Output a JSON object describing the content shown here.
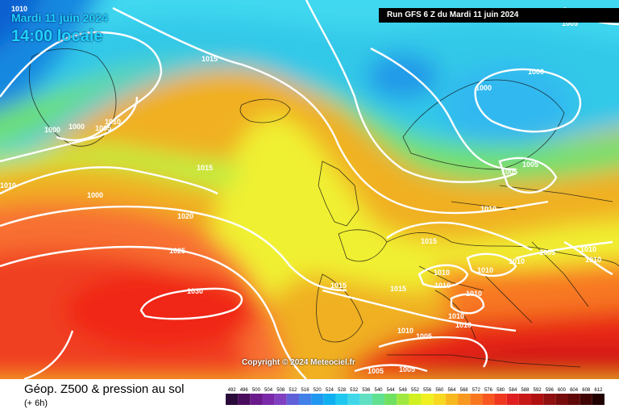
{
  "header": {
    "date_label": "Mardi 11 juin 2024",
    "time_label": "14:00 locale",
    "run_label": "Run GFS 6 Z du Mardi 11 juin 2024"
  },
  "copyright": "Copyright © 2024 Meteociel.fr",
  "legend": {
    "title": "Géop. Z500 & pression au sol",
    "subtitle": "(+ 6h)",
    "scale": [
      "492",
      "496",
      "500",
      "504",
      "508",
      "512",
      "516",
      "520",
      "524",
      "528",
      "532",
      "536",
      "540",
      "544",
      "548",
      "552",
      "556",
      "560",
      "564",
      "568",
      "572",
      "576",
      "580",
      "584",
      "588",
      "592",
      "596",
      "600",
      "604",
      "608",
      "612"
    ],
    "scale_colors": [
      "#2a0a3a",
      "#4a0c5c",
      "#6a1a8a",
      "#7a2aa8",
      "#8040c0",
      "#6060d8",
      "#4080e8",
      "#2098f0",
      "#10b0f0",
      "#20c8f0",
      "#40d8e8",
      "#60e0c0",
      "#60e090",
      "#70e060",
      "#a0e840",
      "#d0f020",
      "#f0f020",
      "#f8d820",
      "#f8b820",
      "#f89820",
      "#f87820",
      "#f85820",
      "#f03820",
      "#e02020",
      "#c81818",
      "#b01010",
      "#901010",
      "#780c0c",
      "#600808",
      "#400404",
      "#200000"
    ]
  },
  "isobars": [
    {
      "label": "1010"
    },
    {
      "label": "1015"
    },
    {
      "label": "1000"
    },
    {
      "label": "1000"
    },
    {
      "label": "1005"
    },
    {
      "label": "1010"
    },
    {
      "label": "1015"
    },
    {
      "label": "1010"
    },
    {
      "label": "1000"
    },
    {
      "label": "1020"
    },
    {
      "label": "1025"
    },
    {
      "label": "1030"
    },
    {
      "label": "1005"
    },
    {
      "label": "1000"
    },
    {
      "label": "1000"
    },
    {
      "label": "1005"
    },
    {
      "label": "1005"
    },
    {
      "label": "1010"
    },
    {
      "label": "1015"
    },
    {
      "label": "1010"
    },
    {
      "label": "1010"
    },
    {
      "label": "1010"
    },
    {
      "label": "1005"
    },
    {
      "label": "1010"
    },
    {
      "label": "1010"
    },
    {
      "label": "1015"
    },
    {
      "label": "1015"
    },
    {
      "label": "1010"
    },
    {
      "label": "1010"
    },
    {
      "label": "1010"
    },
    {
      "label": "1010"
    },
    {
      "label": "1005"
    },
    {
      "label": "1010"
    },
    {
      "label": "1005"
    },
    {
      "label": "1005"
    }
  ]
}
